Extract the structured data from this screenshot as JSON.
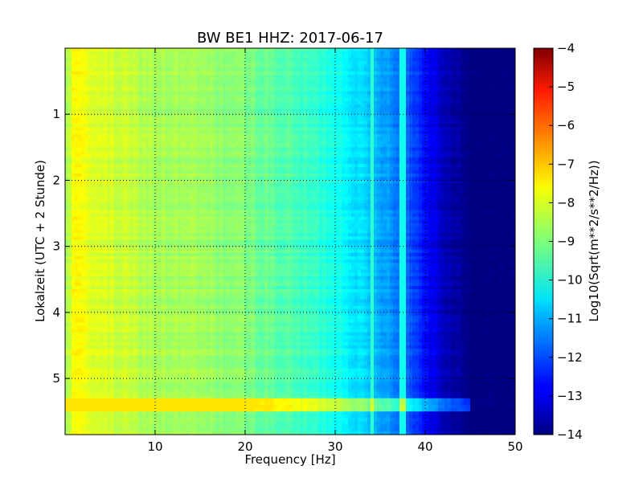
{
  "chart_data": {
    "type": "heatmap",
    "title": "BW BE1 HHZ: 2017-06-17",
    "xlabel": "Frequency [Hz]",
    "ylabel": "Lokalzeit (UTC + 2 Stunde)",
    "xlim": [
      0,
      50
    ],
    "ylim": [
      5.85,
      0
    ],
    "x_ticks": [
      10,
      20,
      30,
      40,
      50
    ],
    "x_tick_labels": [
      "10",
      "20",
      "30",
      "40",
      "50"
    ],
    "y_ticks": [
      1,
      2,
      3,
      4,
      5
    ],
    "y_tick_labels": [
      "1",
      "2",
      "3",
      "4",
      "5"
    ],
    "grid": true,
    "grid_style": "dotted",
    "colormap": "jet",
    "colorbar": {
      "label": "Log10(Sqrt(m**2/s**2/Hz))",
      "range": [
        -14,
        -4
      ],
      "ticks": [
        -4,
        -5,
        -6,
        -7,
        -8,
        -9,
        -10,
        -11,
        -12,
        -13,
        -14
      ],
      "tick_labels": [
        "−4",
        "−5",
        "−6",
        "−7",
        "−8",
        "−9",
        "−10",
        "−11",
        "−12",
        "−13",
        "−14"
      ]
    },
    "spectral_profile": {
      "frequency_hz": [
        0.2,
        1,
        2,
        5,
        10,
        15,
        20,
        25,
        28,
        30,
        32,
        34,
        36,
        38,
        40,
        41,
        42,
        43,
        44,
        45,
        50
      ],
      "log10_psd": [
        -8.6,
        -7.8,
        -7.9,
        -8.2,
        -8.6,
        -8.7,
        -9.0,
        -9.5,
        -9.8,
        -10.0,
        -10.4,
        -10.9,
        -11.2,
        -11.8,
        -12.6,
        -13.0,
        -13.3,
        -13.6,
        -13.8,
        -14.0,
        -14.0
      ]
    },
    "features": [
      {
        "name": "vertical line",
        "frequency_hz": 34.2,
        "log10_psd": -9.8
      },
      {
        "name": "vertical line",
        "frequency_hz": 37.5,
        "log10_psd": -10.1
      },
      {
        "name": "horizontal band",
        "time_h": 5.35,
        "log10_psd_offset": 1.6
      },
      {
        "name": "horizontal band",
        "time_h": 5.45,
        "log10_psd_offset": 1.8
      }
    ]
  }
}
